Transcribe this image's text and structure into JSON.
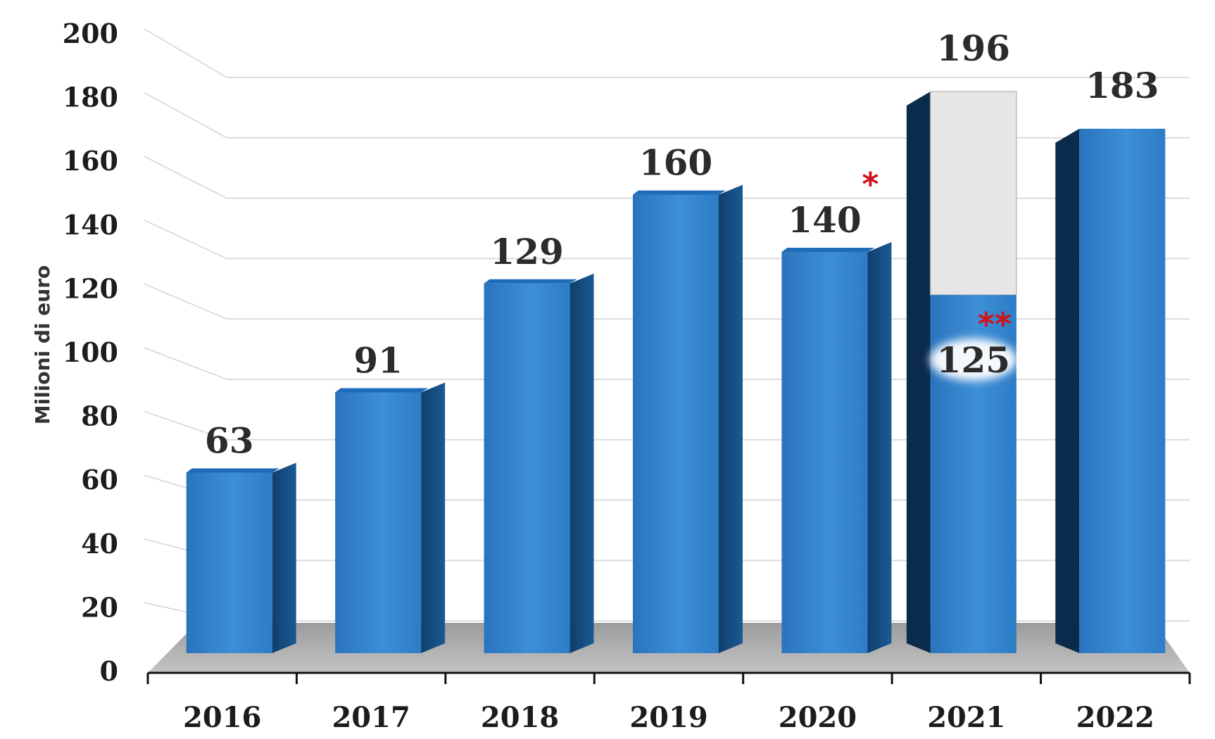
{
  "chart_data": {
    "type": "bar",
    "categories": [
      "2016",
      "2017",
      "2018",
      "2019",
      "2020",
      "2021",
      "2022"
    ],
    "values": [
      63,
      91,
      129,
      160,
      140,
      196,
      183
    ],
    "data_labels": [
      "63",
      "91",
      "129",
      "160",
      "140",
      "196",
      "183"
    ],
    "stacked_segment": {
      "category": "2021",
      "lower_value": 125,
      "lower_label": "125",
      "upper_value": 196,
      "upper_color": "#e6e6e6"
    },
    "annotations": [
      {
        "category": "2020",
        "text": "*"
      },
      {
        "category": "2021",
        "text": "**"
      }
    ],
    "ylabel": "Milioni di euro",
    "xlabel": "",
    "title": "",
    "ylim": [
      0,
      200
    ],
    "yticks": [
      0,
      20,
      40,
      60,
      80,
      100,
      120,
      140,
      160,
      180,
      200
    ],
    "grid": true,
    "legend": "none",
    "three_d": true
  },
  "colors": {
    "bar_front": "#2b7bc4",
    "bar_side": "#124a7c",
    "bar_top": "#1e6bb8",
    "floor": "#b8b8b8",
    "gridline": "#dcdcdc",
    "annotation": "#d0131b"
  }
}
